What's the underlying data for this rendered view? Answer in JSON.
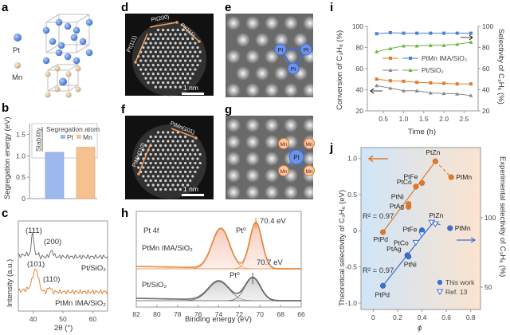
{
  "panel_labels": {
    "a": "a",
    "b": "b",
    "c": "c",
    "d": "d",
    "e": "e",
    "f": "f",
    "g": "g",
    "h": "h",
    "i": "i",
    "j": "j"
  },
  "panel_a": {
    "legend": [
      {
        "label": "Pt",
        "color": "#6f93d8"
      },
      {
        "label": "Mn",
        "color": "#eedcb8"
      }
    ]
  },
  "panel_d": {
    "facets": [
      "Pt(111)",
      "Pt(200)",
      "Pt(111)"
    ],
    "scale_bar": "1 nm"
  },
  "panel_f": {
    "facets": [
      "PtMn(110)",
      "PtMn(101)"
    ],
    "scale_bar": "1 nm"
  },
  "panel_e": {
    "atoms": [
      "Pt",
      "Pt",
      "Pt"
    ]
  },
  "panel_g": {
    "center": "Pt",
    "atoms": [
      "Mn",
      "Mn",
      "Mn",
      "Mn"
    ]
  },
  "colors": {
    "pt_blue": "#3f6fd0",
    "mn_orange": "#e07a2a",
    "grey": "#777777",
    "green": "#6cb33f",
    "bar_pt": "#9db8ee",
    "bar_mn": "#f7c08f"
  },
  "chart_data": [
    {
      "id": "b",
      "type": "bar",
      "categories": [
        "Pt",
        "Mn"
      ],
      "values": [
        1.08,
        1.2
      ],
      "ylabel": "Segregation energy (eV)",
      "yticks": [
        "0",
        "0.5",
        "1.0",
        "1.5"
      ],
      "ylim": [
        0,
        1.75
      ],
      "legend_title": "Segregation atom",
      "legend": [
        "Pt",
        "Mn"
      ],
      "annotation": "Stability"
    },
    {
      "id": "c",
      "type": "line",
      "xlabel": "2θ (°)",
      "ylabel": "Intensity (a.u.)",
      "xticks": [
        "40",
        "50",
        "60"
      ],
      "xlim": [
        35,
        65
      ],
      "series": [
        {
          "name": "Pt/SiO₂",
          "peaks": [
            {
              "label": "(111)",
              "x": 39.8
            },
            {
              "label": "(200)",
              "x": 46.2
            }
          ]
        },
        {
          "name": "PtMn IMA/SiO₂",
          "peaks": [
            {
              "label": "(101)",
              "x": 40.8
            },
            {
              "label": "(110)",
              "x": 45.5
            }
          ]
        }
      ]
    },
    {
      "id": "h",
      "type": "line",
      "title": "Pt 4f",
      "xlabel": "Binding energy (eV)",
      "xticks": [
        "82",
        "80",
        "78",
        "76",
        "74",
        "72",
        "70",
        "68",
        "66"
      ],
      "xlim": [
        82,
        66
      ],
      "series": [
        {
          "name": "PtMn IMA/SiO₂",
          "peaks": [
            73.8,
            70.4
          ],
          "annotation": "70.4 eV",
          "peak_label": "Pt⁰"
        },
        {
          "name": "Pt/SiO₂",
          "peaks": [
            74.0,
            70.7
          ],
          "annotation": "70.7 eV",
          "peak_label": "Pt⁰"
        }
      ]
    },
    {
      "id": "i",
      "type": "line",
      "xlabel": "Time (h)",
      "ylabel_left": "Conversion of C₃H₈ (%)",
      "ylabel_right": "Selectivity of C₃H₆ (%)",
      "xticks": [
        "0.5",
        "1.0",
        "1.5",
        "2.0",
        "2.5"
      ],
      "xlim": [
        0.1,
        2.85
      ],
      "yticks": [
        "20",
        "40",
        "60",
        "80",
        "100"
      ],
      "ylim": [
        20,
        100
      ],
      "x": [
        0.33,
        0.67,
        1.0,
        1.33,
        1.67,
        2.0,
        2.33,
        2.67
      ],
      "series": [
        {
          "name": "PtMn IMA/SiO₂",
          "metric": "selectivity",
          "axis": "right",
          "color": "#4a7fd8",
          "marker": "square",
          "values": [
            93,
            94,
            93.5,
            93.5,
            93.5,
            93.5,
            93.5,
            93.5
          ]
        },
        {
          "name": "Pt/SiO₂",
          "metric": "selectivity",
          "axis": "right",
          "color": "#6cb33f",
          "marker": "triangle",
          "values": [
            76,
            79,
            81.5,
            81.5,
            82,
            82,
            83,
            85
          ]
        },
        {
          "name": "PtMn IMA/SiO₂",
          "metric": "conversion",
          "axis": "left",
          "color": "#e07a2a",
          "marker": "square",
          "values": [
            50,
            48.5,
            48,
            47,
            46.5,
            46,
            45.5,
            45.5
          ]
        },
        {
          "name": "Pt/SiO₂",
          "metric": "conversion",
          "axis": "left",
          "color": "#888888",
          "marker": "triangle",
          "values": [
            44,
            41.5,
            39,
            39,
            37,
            36.5,
            36,
            34.5
          ]
        }
      ],
      "legend": [
        "PtMn IMA/SiO₂",
        "Pt/SiO₂"
      ]
    },
    {
      "id": "j",
      "type": "scatter",
      "xlabel": "ϕ",
      "ylabel_left": "Theoretical selectivity of C₃H₆ (eV)",
      "ylabel_right": "Experimental selectivity of C₃H₆ (%)",
      "xticks": [
        "0",
        "0.2",
        "0.4",
        "0.6",
        "0.8"
      ],
      "xlim": [
        -0.1,
        0.88
      ],
      "yticks_left": [
        "-1.0",
        "-0.5",
        "0",
        "0.5",
        "1.0"
      ],
      "ylim_left": [
        -1.09,
        1.15
      ],
      "yticks_right": [
        "50",
        "100"
      ],
      "r2_labels": [
        "R² = 0.97",
        "R² = 0.97"
      ],
      "theoretical": [
        {
          "label": "PtPd",
          "x": 0.08,
          "y": -0.02
        },
        {
          "label": "PtAg",
          "x": 0.29,
          "y": 0.33
        },
        {
          "label": "PtNi",
          "x": 0.29,
          "y": 0.37
        },
        {
          "label": "PtCo",
          "x": 0.35,
          "y": 0.61
        },
        {
          "label": "PtFe",
          "x": 0.4,
          "y": 0.66
        },
        {
          "label": "PtZn",
          "x": 0.51,
          "y": 0.96
        },
        {
          "label": "PtMn",
          "x": 0.64,
          "y": 0.74
        }
      ],
      "experimental": [
        {
          "label": "PtPd",
          "x": 0.08,
          "y": 51,
          "source": "This work"
        },
        {
          "label": "PtAg",
          "x": 0.28,
          "y": 73,
          "source": "This work"
        },
        {
          "label": "PtNi",
          "x": 0.29,
          "y": 72,
          "source": "This work"
        },
        {
          "label": "PtCo",
          "x": 0.35,
          "y": 82,
          "source": "Ref."
        },
        {
          "label": "PtFe",
          "x": 0.4,
          "y": 91,
          "source": "This work"
        },
        {
          "label": "",
          "x": 0.4,
          "y": 88,
          "source": "Ref."
        },
        {
          "label": "",
          "x": 0.48,
          "y": 96.5,
          "source": "Ref."
        },
        {
          "label": "PtZn",
          "x": 0.51,
          "y": 95.4,
          "source": "Ref."
        },
        {
          "label": "PtMn",
          "x": 0.63,
          "y": 92.5,
          "source": "This work"
        }
      ],
      "legend": [
        "This work",
        "Ref. 13"
      ]
    }
  ]
}
